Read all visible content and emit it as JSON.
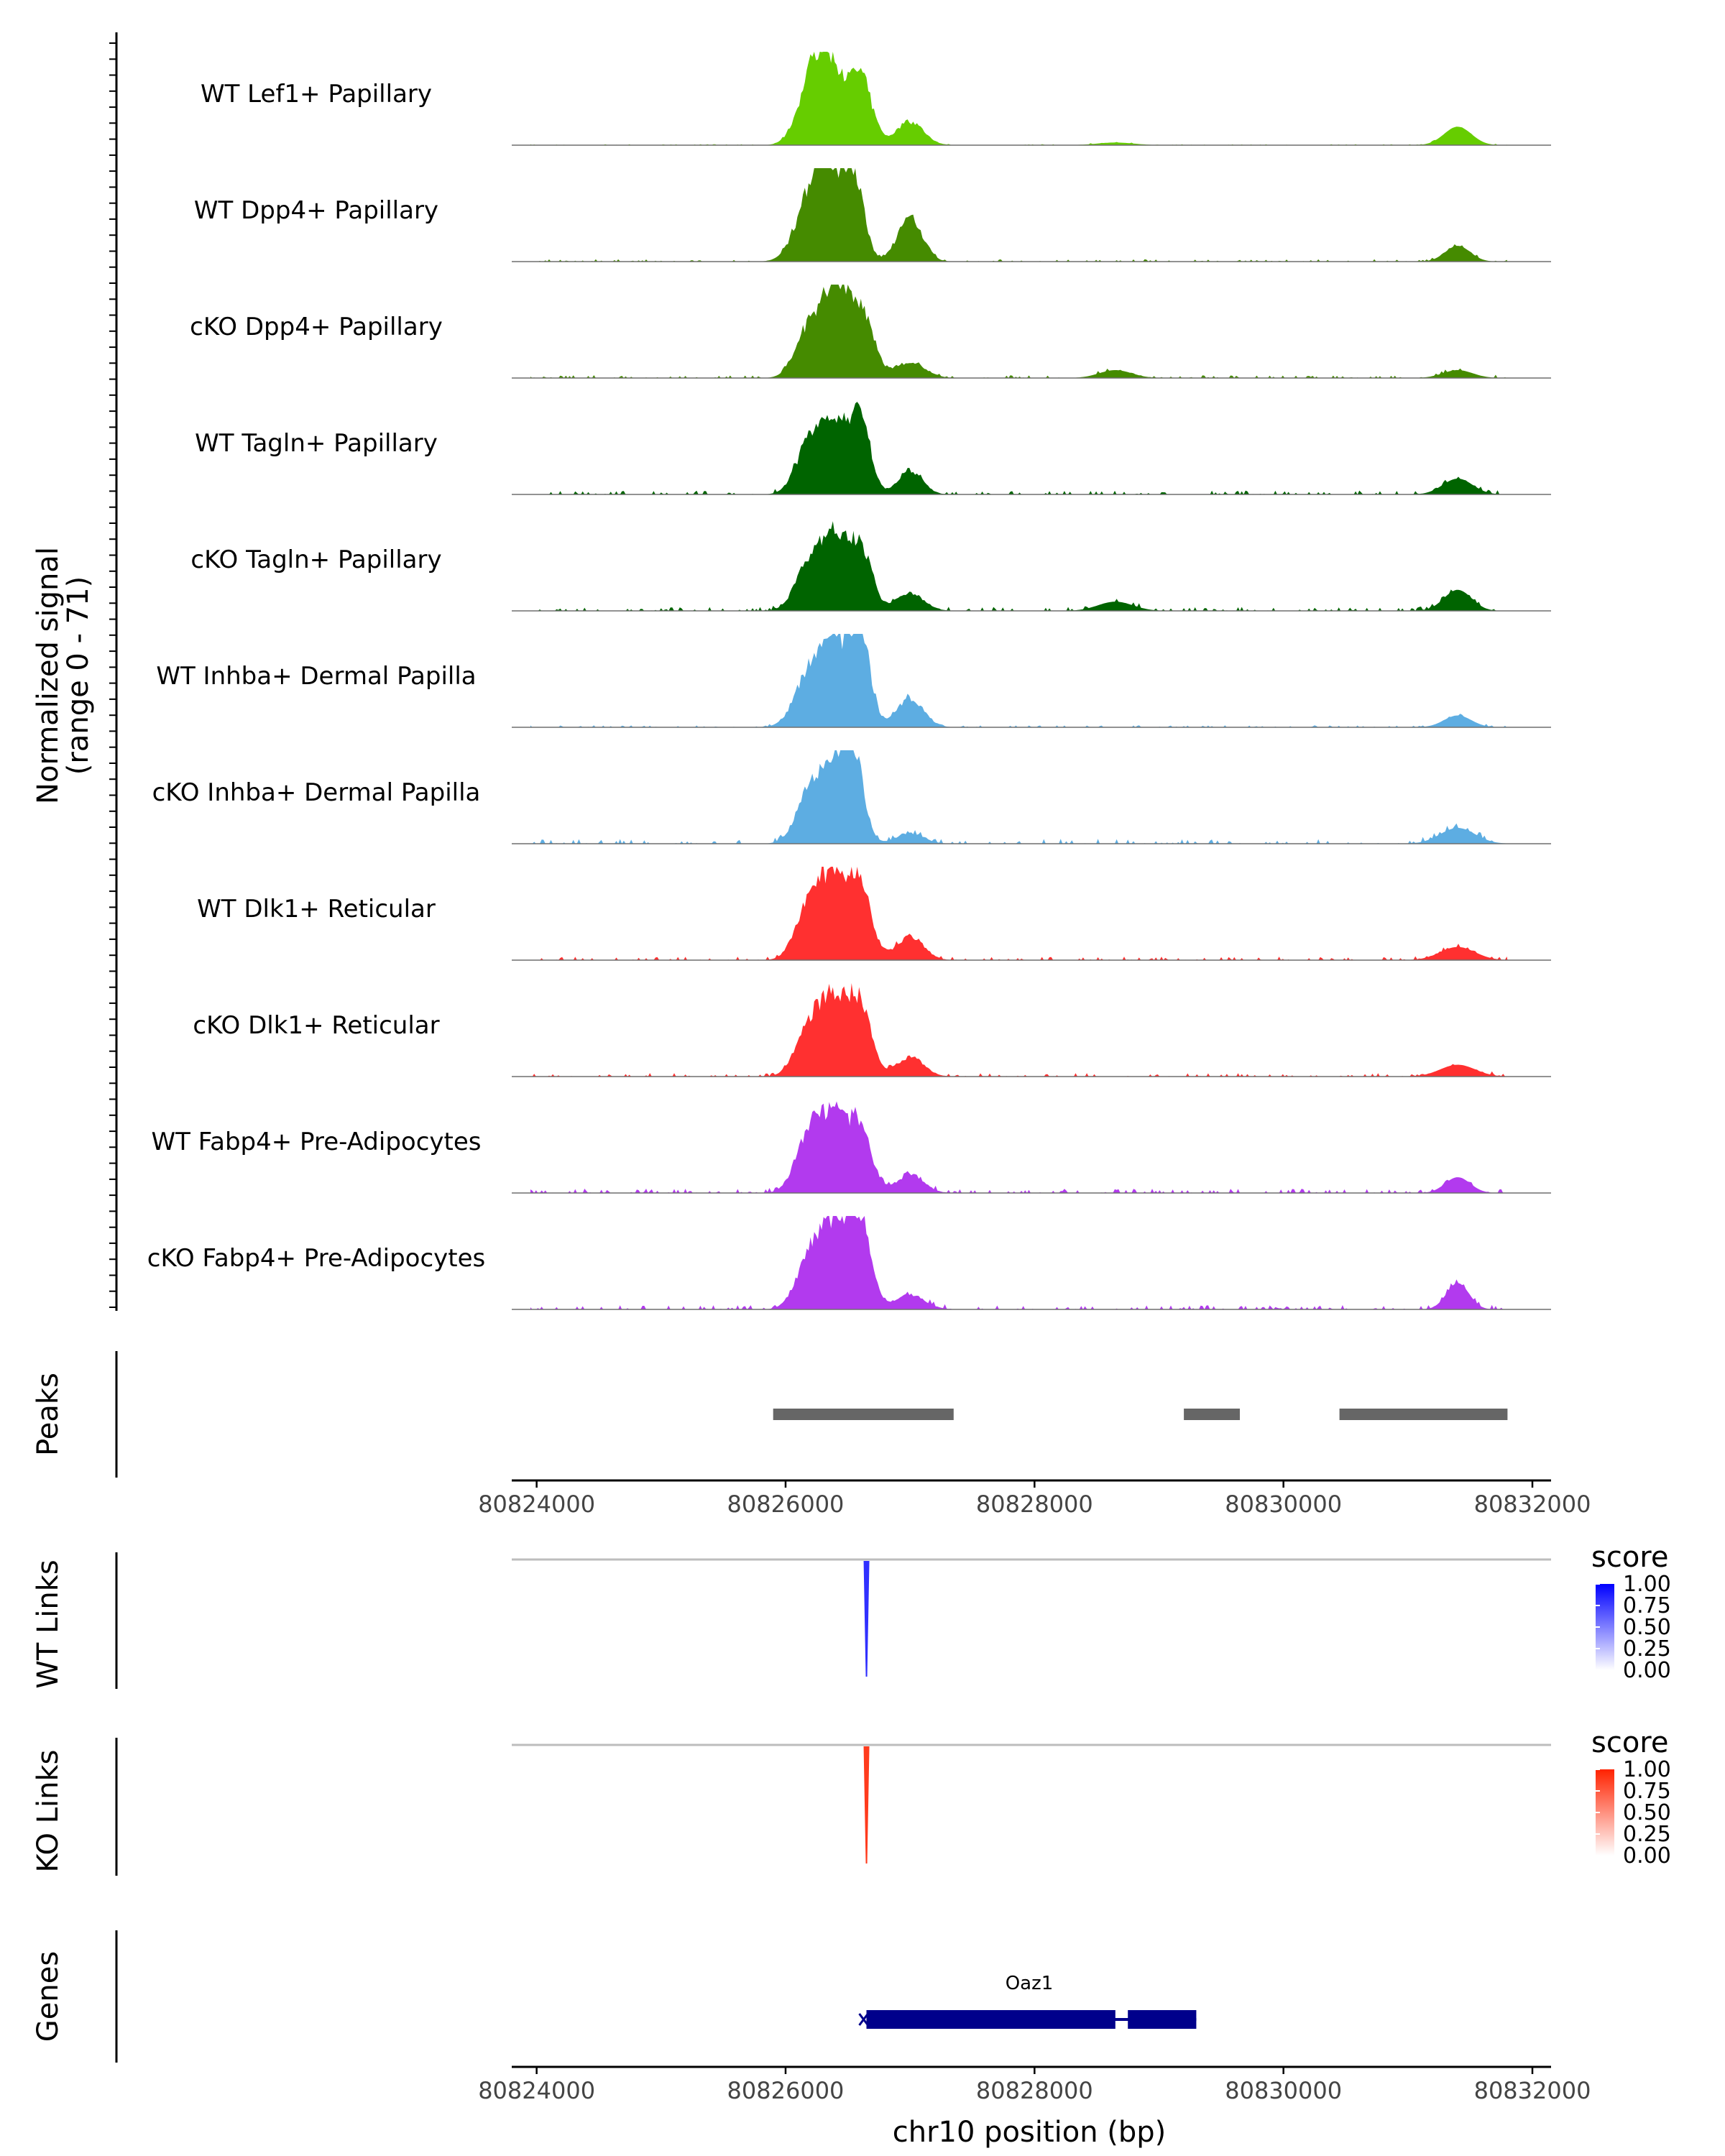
{
  "chart_data": {
    "type": "area",
    "title": "",
    "coverage": {
      "ylabel_line1": "Normalized signal",
      "ylabel_line2": "(range 0 - 71)",
      "ylim": [
        0,
        71
      ],
      "tracks": [
        {
          "label": "WT Lef1+ Papillary",
          "color": "#66CD00",
          "peaks": [
            [
              80826200,
              40,
              110
            ],
            [
              80826350,
              55,
              110
            ],
            [
              80826600,
              52,
              90
            ],
            [
              80827000,
              18,
              110
            ],
            [
              80828650,
              2,
              150
            ],
            [
              80831400,
              14,
              110
            ]
          ],
          "noise": 0.5
        },
        {
          "label": "WT Dpp4+ Papillary",
          "color": "#458B00",
          "peaks": [
            [
              80826200,
              45,
              120
            ],
            [
              80826350,
              58,
              100
            ],
            [
              80826550,
              62,
              80
            ],
            [
              80827000,
              33,
              100
            ],
            [
              80831400,
              12,
              100
            ]
          ],
          "noise": 1.2
        },
        {
          "label": "cKO Dpp4+ Papillary",
          "color": "#458B00",
          "peaks": [
            [
              80826200,
              40,
              110
            ],
            [
              80826400,
              64,
              90
            ],
            [
              80826600,
              52,
              100
            ],
            [
              80827000,
              12,
              120
            ],
            [
              80828650,
              6,
              130
            ],
            [
              80831400,
              6,
              120
            ]
          ],
          "noise": 1.5
        },
        {
          "label": "WT Tagln+ Papillary",
          "color": "#006400",
          "peaks": [
            [
              80826200,
              40,
              110
            ],
            [
              80826400,
              50,
              100
            ],
            [
              80826600,
              58,
              80
            ],
            [
              80827000,
              18,
              100
            ],
            [
              80831400,
              12,
              120
            ]
          ],
          "noise": 2.0
        },
        {
          "label": "cKO Tagln+ Papillary",
          "color": "#006400",
          "peaks": [
            [
              80826200,
              40,
              110
            ],
            [
              80826400,
              52,
              90
            ],
            [
              80826600,
              48,
              90
            ],
            [
              80827000,
              14,
              110
            ],
            [
              80828650,
              7,
              140
            ],
            [
              80831400,
              16,
              110
            ]
          ],
          "noise": 2.0
        },
        {
          "label": "WT Inhba+ Dermal Papilla",
          "color": "#5DADE2",
          "peaks": [
            [
              80826200,
              42,
              120
            ],
            [
              80826400,
              55,
              100
            ],
            [
              80826600,
              71,
              80
            ],
            [
              80827000,
              22,
              110
            ],
            [
              80831400,
              9,
              110
            ]
          ],
          "noise": 1.0
        },
        {
          "label": "cKO Inhba+ Dermal Papilla",
          "color": "#5DADE2",
          "peaks": [
            [
              80826200,
              40,
              110
            ],
            [
              80826400,
              52,
              100
            ],
            [
              80826550,
              60,
              80
            ],
            [
              80827000,
              8,
              110
            ],
            [
              80831400,
              12,
              140
            ]
          ],
          "noise": 2.5
        },
        {
          "label": "WT Dlk1+ Reticular",
          "color": "#FF3030",
          "peaks": [
            [
              80826200,
              45,
              110
            ],
            [
              80826400,
              55,
              100
            ],
            [
              80826600,
              56,
              90
            ],
            [
              80827000,
              18,
              110
            ],
            [
              80831400,
              10,
              140
            ]
          ],
          "noise": 1.8
        },
        {
          "label": "cKO Dlk1+ Reticular",
          "color": "#FF3030",
          "peaks": [
            [
              80826200,
              40,
              110
            ],
            [
              80826400,
              53,
              100
            ],
            [
              80826600,
              53,
              90
            ],
            [
              80827000,
              15,
              110
            ],
            [
              80831400,
              9,
              140
            ]
          ],
          "noise": 1.8
        },
        {
          "label": "WT Fabp4+ Pre-Adipocytes",
          "color": "#B23AEE",
          "peaks": [
            [
              80826200,
              48,
              110
            ],
            [
              80826400,
              48,
              100
            ],
            [
              80826600,
              50,
              90
            ],
            [
              80827000,
              14,
              110
            ],
            [
              80831400,
              12,
              100
            ]
          ],
          "noise": 2.2
        },
        {
          "label": "cKO Fabp4+ Pre-Adipocytes",
          "color": "#B23AEE",
          "peaks": [
            [
              80826200,
              40,
              110
            ],
            [
              80826400,
              58,
              110
            ],
            [
              80826600,
              61,
              90
            ],
            [
              80827000,
              11,
              120
            ],
            [
              80831400,
              20,
              90
            ]
          ],
          "noise": 2.2
        }
      ]
    },
    "peaks_track": {
      "label": "Peaks",
      "regions": [
        [
          80825900,
          80827350
        ],
        [
          80829200,
          80829650
        ],
        [
          80830450,
          80831800
        ]
      ],
      "color": "#666666"
    },
    "x_axis": {
      "xlim": [
        80823800,
        80832150
      ],
      "ticks": [
        80824000,
        80826000,
        80828000,
        80830000,
        80832000
      ],
      "tick_labels": [
        "80824000",
        "80826000",
        "80828000",
        "80830000",
        "80832000"
      ],
      "xlabel": "chr10 position (bp)"
    },
    "links": [
      {
        "label": "WT Links",
        "legend_title": "score",
        "color": "#0000FF",
        "start": 80826640,
        "end": 80826660,
        "score": 0.75,
        "legend_ticks": [
          "1.00",
          "0.75",
          "0.50",
          "0.25",
          "0.00"
        ]
      },
      {
        "label": "KO Links",
        "legend_title": "score",
        "color": "#FF2200",
        "start": 80826640,
        "end": 80826660,
        "score": 0.85,
        "legend_ticks": [
          "1.00",
          "0.75",
          "0.50",
          "0.25",
          "0.00"
        ]
      }
    ],
    "genes": {
      "label": "Genes",
      "gene_name": "Oaz1",
      "color": "#00008B",
      "start": 80826650,
      "end": 80829300,
      "exons": [
        [
          80826650,
          80828650
        ],
        [
          80828750,
          80829300
        ]
      ]
    }
  }
}
